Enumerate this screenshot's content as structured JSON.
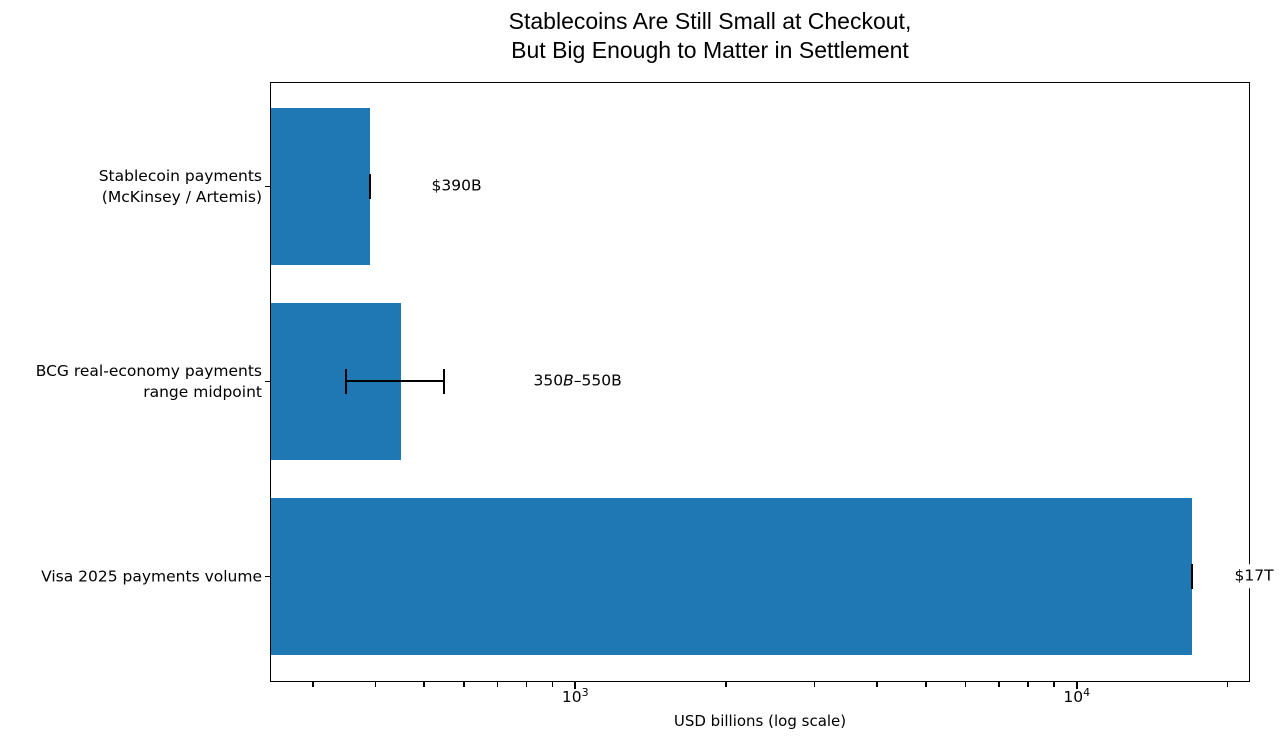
{
  "chart_data": {
    "type": "bar",
    "orientation": "horizontal",
    "title_line1": "Stablecoins Are Still Small at Checkout,",
    "title_line2": "But Big Enough to Matter in Settlement",
    "xlabel": "USD billions (log scale)",
    "x_scale": "log",
    "xlim": [
      248,
      22000
    ],
    "grid": false,
    "legend": "none",
    "bar_color": "#1f77b4",
    "error_bar_color": "#000000",
    "x_major_ticks": [
      {
        "base": "10",
        "exp": "3",
        "value": 1000
      },
      {
        "base": "10",
        "exp": "4",
        "value": 10000
      }
    ],
    "x_minor_tick_values": [
      300,
      400,
      500,
      600,
      700,
      800,
      900,
      2000,
      3000,
      4000,
      5000,
      6000,
      7000,
      8000,
      9000,
      20000
    ],
    "bars": [
      {
        "category_line1": "Stablecoin payments",
        "category_line2": "(McKinsey / Artemis)",
        "value": 390,
        "err_low": 390,
        "err_high": 390,
        "label_parts": {
          "pre": "$390B",
          "italic": "",
          "post": ""
        }
      },
      {
        "category_line1": "BCG real-economy payments",
        "category_line2": "range midpoint",
        "value": 450,
        "err_low": 350,
        "err_high": 550,
        "label_parts": {
          "pre": "350",
          "italic": "B",
          "post": "–550B"
        }
      },
      {
        "category_line1": "Visa 2025 payments volume",
        "category_line2": "",
        "value": 17000,
        "err_low": 17000,
        "err_high": 17000,
        "label_parts": {
          "pre": "$17T",
          "italic": "",
          "post": ""
        }
      }
    ]
  }
}
